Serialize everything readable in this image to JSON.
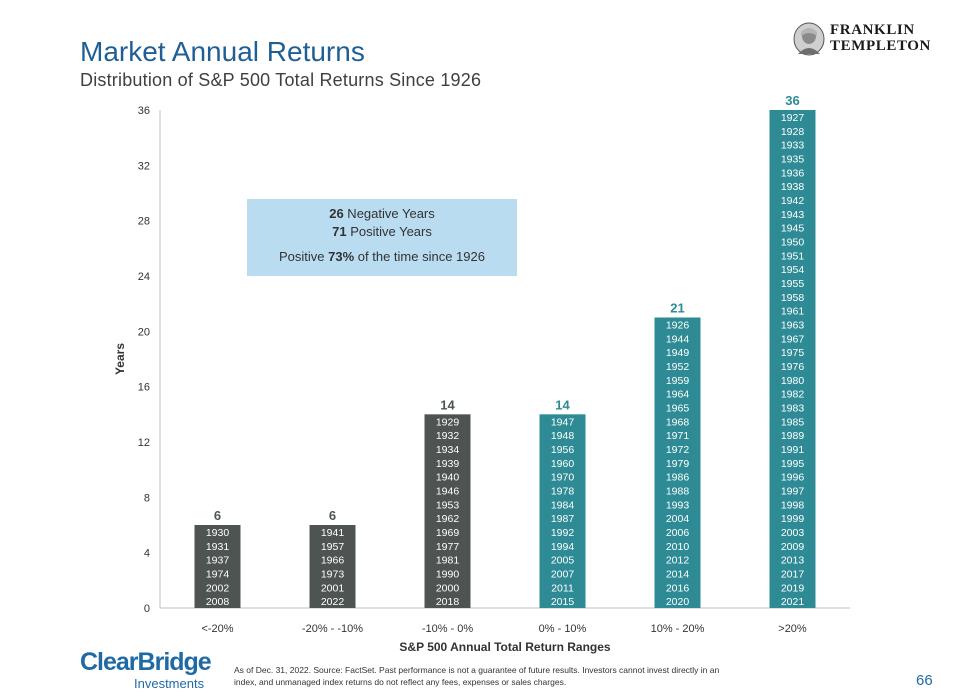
{
  "header": {
    "title": "Market Annual Returns",
    "subtitle": "Distribution of S&P 500 Total Returns Since 1926"
  },
  "brand": {
    "line1": "FRANKLIN",
    "line2": "TEMPLETON"
  },
  "clearbridge": {
    "name": "ClearBridge",
    "sub": "Investments"
  },
  "footnote": "As of Dec. 31, 2022. Source: FactSet. Past performance is not a guarantee of future results. Investors cannot invest directly in an index, and unmanaged index returns do not reflect any fees, expenses or sales charges.",
  "page_number": "66",
  "colors": {
    "negative": "#4d5452",
    "positive": "#2e8b95",
    "title": "#1f5f96",
    "callout": "#b9dcf1"
  },
  "chart_data": {
    "type": "bar",
    "title": "Distribution of S&P 500 Total Returns Since 1926",
    "xlabel": "S&P 500 Annual Total Return Ranges",
    "ylabel": "Years",
    "ylim": [
      0,
      36
    ],
    "yticks": [
      0,
      4,
      8,
      12,
      16,
      20,
      24,
      28,
      32,
      36
    ],
    "grid": false,
    "categories": [
      "<-20%",
      "-20% - -10%",
      "-10% - 0%",
      "0% - 10%",
      "10% - 20%",
      ">20%"
    ],
    "values": [
      6,
      6,
      14,
      14,
      21,
      36
    ],
    "bar_colors": [
      "#4d5452",
      "#4d5452",
      "#4d5452",
      "#2e8b95",
      "#2e8b95",
      "#2e8b95"
    ],
    "years": [
      [
        "1930",
        "1931",
        "1937",
        "1974",
        "2002",
        "2008"
      ],
      [
        "1941",
        "1957",
        "1966",
        "1973",
        "2001",
        "2022"
      ],
      [
        "1929",
        "1932",
        "1934",
        "1939",
        "1940",
        "1946",
        "1953",
        "1962",
        "1969",
        "1977",
        "1981",
        "1990",
        "2000",
        "2018"
      ],
      [
        "1947",
        "1948",
        "1956",
        "1960",
        "1970",
        "1978",
        "1984",
        "1987",
        "1992",
        "1994",
        "2005",
        "2007",
        "2011",
        "2015"
      ],
      [
        "1926",
        "1944",
        "1949",
        "1952",
        "1959",
        "1964",
        "1965",
        "1968",
        "1971",
        "1972",
        "1979",
        "1986",
        "1988",
        "1993",
        "2004",
        "2006",
        "2010",
        "2012",
        "2014",
        "2016",
        "2020"
      ],
      [
        "1927",
        "1928",
        "1933",
        "1935",
        "1936",
        "1938",
        "1942",
        "1943",
        "1945",
        "1950",
        "1951",
        "1954",
        "1955",
        "1958",
        "1961",
        "1963",
        "1967",
        "1975",
        "1976",
        "1980",
        "1982",
        "1983",
        "1985",
        "1989",
        "1991",
        "1995",
        "1996",
        "1997",
        "1998",
        "1999",
        "2003",
        "2009",
        "2013",
        "2017",
        "2019",
        "2021"
      ]
    ],
    "annotation": {
      "negative_count": "26",
      "negative_label": " Negative Years",
      "positive_count": "71",
      "positive_label": " Positive Years",
      "pct_prefix": "Positive ",
      "pct_value": "73%",
      "pct_suffix": " of the time since 1926"
    }
  }
}
